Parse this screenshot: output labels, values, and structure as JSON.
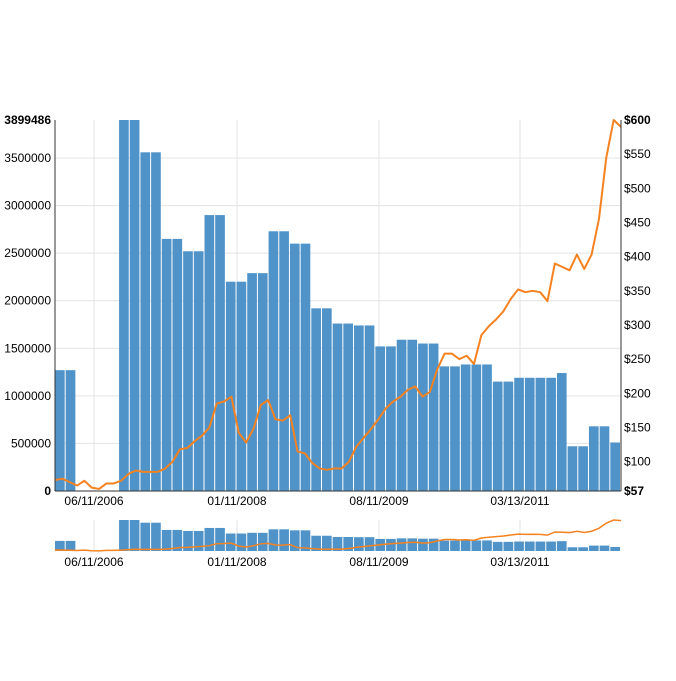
{
  "chart_data": [
    {
      "type": "bar+line",
      "title": "",
      "x_ticks": [
        "06/11/2006",
        "01/11/2008",
        "08/11/2009",
        "03/13/2011"
      ],
      "y_left": {
        "min": 0,
        "max": 3899486,
        "ticks": [
          "0",
          "500000",
          "1000000",
          "1500000",
          "2000000",
          "2500000",
          "3000000",
          "3500000"
        ],
        "max_label": "3899486"
      },
      "y_right": {
        "min": 57,
        "max": 600,
        "ticks": [
          "$100",
          "$150",
          "$200",
          "$250",
          "$300",
          "$350",
          "$400",
          "$450",
          "$500",
          "$550"
        ],
        "min_label": "$57",
        "max_label": "$600"
      },
      "grid": true,
      "colors": {
        "bars": "#4f93c9",
        "line": "#f58220",
        "grid": "#e3e3e3",
        "axis": "#333333"
      },
      "series": [
        {
          "type": "bar",
          "unit": "volume",
          "values": [
            1270000,
            1270000,
            0,
            0,
            0,
            0,
            3899486,
            3899486,
            3560000,
            3560000,
            2650000,
            2650000,
            2520000,
            2520000,
            2900000,
            2900000,
            2200000,
            2200000,
            2290000,
            2290000,
            2730000,
            2730000,
            2600000,
            2600000,
            1920000,
            1920000,
            1760000,
            1760000,
            1740000,
            1740000,
            1520000,
            1520000,
            1590000,
            1590000,
            1550000,
            1550000,
            1310000,
            1310000,
            1330000,
            1330000,
            1330000,
            1150000,
            1150000,
            1190000,
            1190000,
            1190000,
            1190000,
            1240000,
            470000,
            470000,
            680000,
            680000,
            510000
          ]
        },
        {
          "type": "line",
          "unit": "price",
          "values": [
            73,
            75,
            70,
            65,
            72,
            62,
            60,
            68,
            68,
            72,
            82,
            87,
            85,
            85,
            85,
            90,
            100,
            118,
            120,
            130,
            138,
            150,
            185,
            188,
            195,
            142,
            128,
            148,
            183,
            190,
            162,
            160,
            168,
            115,
            112,
            98,
            90,
            88,
            90,
            90,
            100,
            122,
            135,
            148,
            162,
            178,
            188,
            195,
            205,
            210,
            195,
            202,
            235,
            258,
            258,
            250,
            255,
            243,
            285,
            298,
            308,
            320,
            338,
            352,
            348,
            350,
            348,
            335,
            390,
            385,
            380,
            403,
            382,
            403,
            455,
            545,
            600,
            590
          ]
        }
      ]
    },
    {
      "type": "bar+line",
      "role": "overview",
      "x_ticks": [
        "06/11/2006",
        "01/11/2008",
        "08/11/2009",
        "03/13/2011"
      ]
    }
  ]
}
